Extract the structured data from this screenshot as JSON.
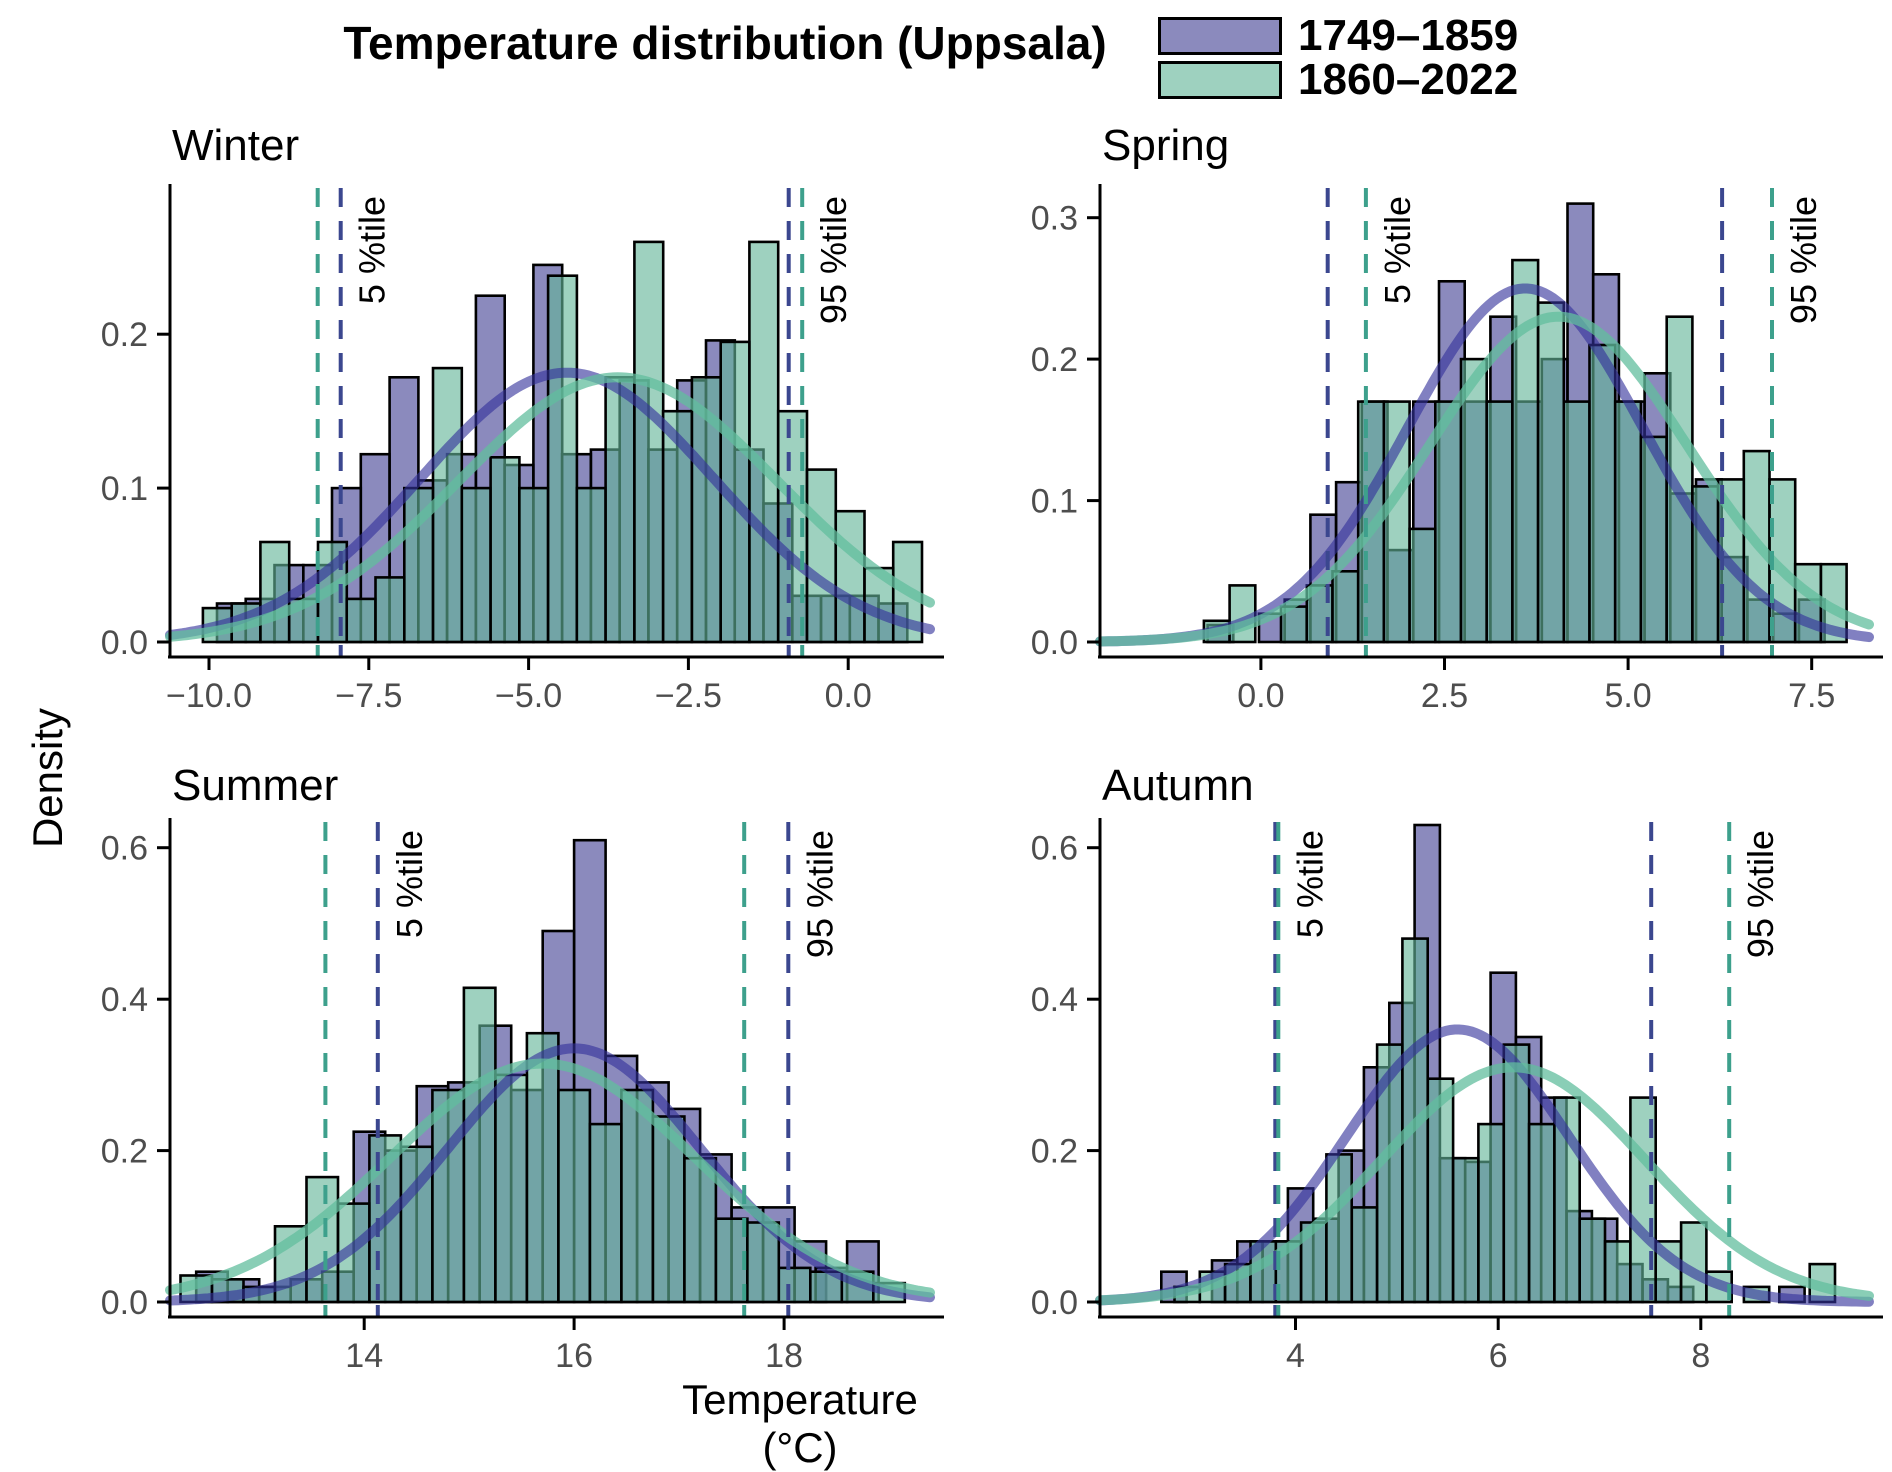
{
  "title": "Temperature distribution (Uppsala)",
  "axes": {
    "x_label": "Temperature (°C)",
    "y_label": "Density"
  },
  "legend": {
    "series": [
      {
        "label": "1749–1859",
        "fill": "#4f4e9b",
        "fill_opacity": 0.66
      },
      {
        "label": "1860–2022",
        "fill": "#63b598",
        "fill_opacity": 0.62
      }
    ]
  },
  "percentile_labels": {
    "p5": "5 %tile",
    "p95": "95 %tile"
  },
  "styles": {
    "background": "#ffffff",
    "axis_color": "#000000",
    "tick_label_color": "#4d4d4d",
    "bar_stroke": "#000000",
    "purple_fill": "#4f4e9b",
    "purple_fill_opacity": 0.66,
    "green_fill": "#63b598",
    "green_fill_opacity": 0.62,
    "purple_curve": "#34329b",
    "purple_curve_opacity": 0.62,
    "green_curve": "#62be9d",
    "green_curve_opacity": 0.75,
    "purple_vline": "#3b478f",
    "green_vline": "#3da08c"
  },
  "chart_data": [
    {
      "panel": "Winter",
      "type": "histogram+density",
      "xlim": [
        -10.61,
        1.28
      ],
      "ylim": [
        0,
        0.295
      ],
      "x_ticks": [
        {
          "v": -10,
          "label": "−10.0"
        },
        {
          "v": -7.5,
          "label": "−7.5"
        },
        {
          "v": -5,
          "label": "−5.0"
        },
        {
          "v": -2.5,
          "label": "−2.5"
        },
        {
          "v": 0,
          "label": "0.0"
        }
      ],
      "y_ticks": [
        {
          "v": 0,
          "label": "0.0"
        },
        {
          "v": 0.1,
          "label": "0.1"
        },
        {
          "v": 0.2,
          "label": "0.2"
        }
      ],
      "binwidth": 0.45,
      "series": [
        {
          "name": "1749–1859",
          "bars": [
            [
              -9.65,
              0.025
            ],
            [
              -9.2,
              0.028
            ],
            [
              -8.75,
              0.05
            ],
            [
              -8.3,
              0.05
            ],
            [
              -7.85,
              0.1
            ],
            [
              -7.4,
              0.122
            ],
            [
              -6.95,
              0.172
            ],
            [
              -6.5,
              0.105
            ],
            [
              -6.05,
              0.122
            ],
            [
              -5.6,
              0.225
            ],
            [
              -5.15,
              0.115
            ],
            [
              -4.7,
              0.245
            ],
            [
              -4.25,
              0.122
            ],
            [
              -3.8,
              0.125
            ],
            [
              -3.35,
              0.17
            ],
            [
              -2.9,
              0.125
            ],
            [
              -2.45,
              0.17
            ],
            [
              -2.0,
              0.196
            ],
            [
              -1.55,
              0.125
            ],
            [
              -1.1,
              0.09
            ],
            [
              -0.65,
              0.03
            ],
            [
              -0.2,
              0.03
            ],
            [
              0.25,
              0.03
            ],
            [
              0.7,
              0.025
            ]
          ],
          "curve": {
            "mean": -4.4,
            "sd": 2.3,
            "peak": 0.175
          },
          "p5": -7.94,
          "p95": -0.93
        },
        {
          "name": "1860–2022",
          "bars": [
            [
              -9.87,
              0.022
            ],
            [
              -9.42,
              0.025
            ],
            [
              -8.97,
              0.065
            ],
            [
              -8.52,
              0.028
            ],
            [
              -8.07,
              0.065
            ],
            [
              -7.62,
              0.028
            ],
            [
              -7.17,
              0.042
            ],
            [
              -6.72,
              0.1
            ],
            [
              -6.27,
              0.178
            ],
            [
              -5.82,
              0.1
            ],
            [
              -5.37,
              0.12
            ],
            [
              -4.92,
              0.1
            ],
            [
              -4.47,
              0.238
            ],
            [
              -4.02,
              0.1
            ],
            [
              -3.57,
              0.172
            ],
            [
              -3.12,
              0.26
            ],
            [
              -2.67,
              0.15
            ],
            [
              -2.22,
              0.172
            ],
            [
              -1.77,
              0.195
            ],
            [
              -1.32,
              0.26
            ],
            [
              -0.87,
              0.15
            ],
            [
              -0.42,
              0.112
            ],
            [
              0.03,
              0.085
            ],
            [
              0.48,
              0.048
            ],
            [
              0.93,
              0.065
            ]
          ],
          "curve": {
            "mean": -3.6,
            "sd": 2.5,
            "peak": 0.172
          },
          "p5": -8.3,
          "p95": -0.72
        }
      ]
    },
    {
      "panel": "Spring",
      "type": "histogram+density",
      "xlim": [
        -2.19,
        8.28
      ],
      "ylim": [
        0,
        0.321
      ],
      "x_ticks": [
        {
          "v": 0,
          "label": "0.0"
        },
        {
          "v": 2.5,
          "label": "2.5"
        },
        {
          "v": 5,
          "label": "5.0"
        },
        {
          "v": 7.5,
          "label": "7.5"
        }
      ],
      "y_ticks": [
        {
          "v": 0,
          "label": "0.0"
        },
        {
          "v": 0.1,
          "label": "0.1"
        },
        {
          "v": 0.2,
          "label": "0.2"
        },
        {
          "v": 0.3,
          "label": "0.3"
        }
      ],
      "binwidth": 0.35,
      "series": [
        {
          "name": "1749–1859",
          "bars": [
            [
              -0.55,
              0.012
            ],
            [
              0.15,
              0.02
            ],
            [
              0.5,
              0.03
            ],
            [
              0.85,
              0.09
            ],
            [
              1.2,
              0.113
            ],
            [
              1.55,
              0.17
            ],
            [
              1.9,
              0.065
            ],
            [
              2.25,
              0.17
            ],
            [
              2.6,
              0.255
            ],
            [
              2.95,
              0.17
            ],
            [
              3.3,
              0.23
            ],
            [
              3.65,
              0.17
            ],
            [
              4.0,
              0.2
            ],
            [
              4.35,
              0.31
            ],
            [
              4.7,
              0.26
            ],
            [
              5.05,
              0.17
            ],
            [
              5.4,
              0.19
            ],
            [
              5.75,
              0.105
            ],
            [
              6.1,
              0.115
            ],
            [
              6.45,
              0.06
            ],
            [
              6.8,
              0.03
            ],
            [
              7.15,
              0.02
            ],
            [
              7.5,
              0.03
            ]
          ],
          "curve": {
            "mean": 3.6,
            "sd": 1.6,
            "peak": 0.25
          },
          "p5": 0.91,
          "p95": 6.28
        },
        {
          "name": "1860–2022",
          "bars": [
            [
              -0.6,
              0.015
            ],
            [
              -0.25,
              0.04
            ],
            [
              0.45,
              0.025
            ],
            [
              0.8,
              0.04
            ],
            [
              1.15,
              0.05
            ],
            [
              1.5,
              0.17
            ],
            [
              1.85,
              0.17
            ],
            [
              2.2,
              0.08
            ],
            [
              2.55,
              0.17
            ],
            [
              2.9,
              0.2
            ],
            [
              3.25,
              0.17
            ],
            [
              3.6,
              0.27
            ],
            [
              3.95,
              0.24
            ],
            [
              4.3,
              0.17
            ],
            [
              4.65,
              0.21
            ],
            [
              5.0,
              0.17
            ],
            [
              5.35,
              0.145
            ],
            [
              5.7,
              0.23
            ],
            [
              6.05,
              0.11
            ],
            [
              6.4,
              0.115
            ],
            [
              6.75,
              0.135
            ],
            [
              7.1,
              0.115
            ],
            [
              7.45,
              0.055
            ],
            [
              7.8,
              0.055
            ]
          ],
          "curve": {
            "mean": 4.05,
            "sd": 1.75,
            "peak": 0.23
          },
          "p5": 1.43,
          "p95": 6.96
        }
      ]
    },
    {
      "panel": "Summer",
      "type": "histogram+density",
      "xlim": [
        12.15,
        19.39
      ],
      "ylim": [
        0,
        0.634
      ],
      "x_ticks": [
        {
          "v": 14,
          "label": "14"
        },
        {
          "v": 16,
          "label": "16"
        },
        {
          "v": 18,
          "label": "18"
        }
      ],
      "y_ticks": [
        {
          "v": 0,
          "label": "0.0"
        },
        {
          "v": 0.2,
          "label": "0.2"
        },
        {
          "v": 0.4,
          "label": "0.4"
        },
        {
          "v": 0.6,
          "label": "0.6"
        }
      ],
      "binwidth": 0.3,
      "series": [
        {
          "name": "1749–1859",
          "bars": [
            [
              12.55,
              0.04
            ],
            [
              12.85,
              0.03
            ],
            [
              13.15,
              0.02
            ],
            [
              13.45,
              0.03
            ],
            [
              13.75,
              0.04
            ],
            [
              14.05,
              0.225
            ],
            [
              14.35,
              0.2
            ],
            [
              14.65,
              0.285
            ],
            [
              14.95,
              0.29
            ],
            [
              15.25,
              0.365
            ],
            [
              15.55,
              0.28
            ],
            [
              15.85,
              0.49
            ],
            [
              16.15,
              0.61
            ],
            [
              16.45,
              0.325
            ],
            [
              16.75,
              0.29
            ],
            [
              17.05,
              0.255
            ],
            [
              17.35,
              0.195
            ],
            [
              17.65,
              0.125
            ],
            [
              17.95,
              0.125
            ],
            [
              18.25,
              0.08
            ],
            [
              18.45,
              0.045
            ],
            [
              18.75,
              0.08
            ]
          ],
          "curve": {
            "mean": 16.0,
            "sd": 1.2,
            "peak": 0.335
          },
          "p5": 14.13,
          "p95": 18.04
        },
        {
          "name": "1860–2022",
          "bars": [
            [
              12.4,
              0.035
            ],
            [
              12.7,
              0.03
            ],
            [
              13.0,
              0.02
            ],
            [
              13.3,
              0.1
            ],
            [
              13.6,
              0.165
            ],
            [
              13.9,
              0.13
            ],
            [
              14.2,
              0.22
            ],
            [
              14.5,
              0.205
            ],
            [
              14.8,
              0.28
            ],
            [
              15.1,
              0.415
            ],
            [
              15.4,
              0.3
            ],
            [
              15.7,
              0.355
            ],
            [
              16.0,
              0.28
            ],
            [
              16.3,
              0.235
            ],
            [
              16.6,
              0.28
            ],
            [
              16.9,
              0.245
            ],
            [
              17.2,
              0.19
            ],
            [
              17.5,
              0.11
            ],
            [
              17.8,
              0.105
            ],
            [
              18.1,
              0.045
            ],
            [
              18.4,
              0.04
            ],
            [
              18.7,
              0.04
            ],
            [
              19.0,
              0.025
            ]
          ],
          "curve": {
            "mean": 15.7,
            "sd": 1.45,
            "peak": 0.315
          },
          "p5": 13.63,
          "p95": 17.62
        }
      ]
    },
    {
      "panel": "Autumn",
      "type": "histogram+density",
      "xlim": [
        2.07,
        9.66
      ],
      "ylim": [
        0,
        0.634
      ],
      "x_ticks": [
        {
          "v": 4,
          "label": "4"
        },
        {
          "v": 6,
          "label": "6"
        },
        {
          "v": 8,
          "label": "8"
        }
      ],
      "y_ticks": [
        {
          "v": 0,
          "label": "0.0"
        },
        {
          "v": 0.2,
          "label": "0.2"
        },
        {
          "v": 0.4,
          "label": "0.4"
        },
        {
          "v": 0.6,
          "label": "0.6"
        }
      ],
      "binwidth": 0.25,
      "series": [
        {
          "name": "1749–1859",
          "bars": [
            [
              2.8,
              0.04
            ],
            [
              3.3,
              0.055
            ],
            [
              3.55,
              0.08
            ],
            [
              3.8,
              0.08
            ],
            [
              4.05,
              0.15
            ],
            [
              4.3,
              0.11
            ],
            [
              4.55,
              0.2
            ],
            [
              4.8,
              0.31
            ],
            [
              5.05,
              0.395
            ],
            [
              5.3,
              0.63
            ],
            [
              5.55,
              0.19
            ],
            [
              5.8,
              0.185
            ],
            [
              6.05,
              0.435
            ],
            [
              6.3,
              0.35
            ],
            [
              6.55,
              0.27
            ],
            [
              6.8,
              0.12
            ],
            [
              7.05,
              0.11
            ],
            [
              7.3,
              0.05
            ],
            [
              7.55,
              0.03
            ],
            [
              7.8,
              0.02
            ],
            [
              8.9,
              0.02
            ]
          ],
          "curve": {
            "mean": 5.6,
            "sd": 1.1,
            "peak": 0.36
          },
          "p5": 3.8,
          "p95": 7.51
        },
        {
          "name": "1860–2022",
          "bars": [
            [
              2.93,
              0.02
            ],
            [
              3.18,
              0.04
            ],
            [
              3.43,
              0.05
            ],
            [
              3.68,
              0.08
            ],
            [
              3.93,
              0.08
            ],
            [
              4.18,
              0.105
            ],
            [
              4.43,
              0.195
            ],
            [
              4.68,
              0.125
            ],
            [
              4.93,
              0.34
            ],
            [
              5.18,
              0.48
            ],
            [
              5.43,
              0.295
            ],
            [
              5.68,
              0.19
            ],
            [
              5.93,
              0.235
            ],
            [
              6.18,
              0.34
            ],
            [
              6.43,
              0.235
            ],
            [
              6.68,
              0.27
            ],
            [
              6.93,
              0.11
            ],
            [
              7.18,
              0.08
            ],
            [
              7.43,
              0.27
            ],
            [
              7.68,
              0.08
            ],
            [
              7.93,
              0.105
            ],
            [
              8.18,
              0.04
            ],
            [
              8.55,
              0.02
            ],
            [
              9.2,
              0.05
            ]
          ],
          "curve": {
            "mean": 6.15,
            "sd": 1.3,
            "peak": 0.31
          },
          "p5": 3.83,
          "p95": 8.28
        }
      ]
    }
  ]
}
